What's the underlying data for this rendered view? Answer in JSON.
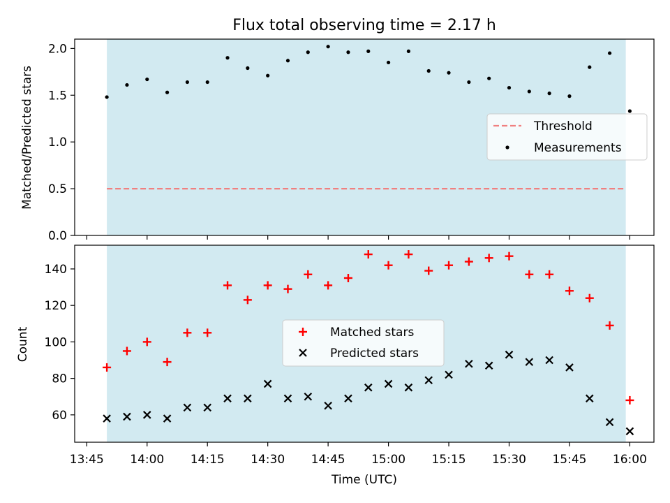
{
  "title": "Flux total observing time = 2.17 h",
  "colors": {
    "shade": "#add8e6",
    "threshold": "#f08080",
    "measurements": "#000000",
    "matched": "#ff0000",
    "predicted": "#000000"
  },
  "chart_data": [
    {
      "type": "scatter",
      "ylabel": "Matched/Predicted stars",
      "ylim": [
        0,
        2.1
      ],
      "y_ticks": [
        "0.0",
        "0.5",
        "1.0",
        "1.5",
        "2.0"
      ],
      "x_axis": "time",
      "xlim": [
        "13:42",
        "16:06"
      ],
      "shaded_span": [
        "13:50",
        "15:59"
      ],
      "legend": {
        "placement": "center-right",
        "entries": [
          "Threshold",
          "Measurements"
        ]
      },
      "series": [
        {
          "name": "Threshold",
          "style": "dashed-line",
          "x": [
            "13:50",
            "15:59"
          ],
          "values": [
            0.5,
            0.5
          ]
        },
        {
          "name": "Measurements",
          "style": "dot",
          "x": [
            "13:50",
            "13:55",
            "14:00",
            "14:05",
            "14:10",
            "14:15",
            "14:20",
            "14:25",
            "14:30",
            "14:35",
            "14:40",
            "14:45",
            "14:50",
            "14:55",
            "15:00",
            "15:05",
            "15:10",
            "15:15",
            "15:20",
            "15:25",
            "15:30",
            "15:35",
            "15:40",
            "15:45",
            "15:50",
            "15:55",
            "16:00"
          ],
          "values": [
            1.48,
            1.61,
            1.67,
            1.53,
            1.64,
            1.64,
            1.9,
            1.79,
            1.71,
            1.87,
            1.96,
            2.02,
            1.96,
            1.97,
            1.85,
            1.97,
            1.76,
            1.74,
            1.64,
            1.68,
            1.58,
            1.54,
            1.52,
            1.49,
            1.8,
            1.95,
            1.33
          ]
        }
      ]
    },
    {
      "type": "scatter",
      "ylabel": "Count",
      "xlabel": "Time (UTC)",
      "ylim": [
        45,
        153
      ],
      "y_ticks": [
        "60",
        "80",
        "100",
        "120",
        "140"
      ],
      "x_axis": "time",
      "xlim": [
        "13:42",
        "16:06"
      ],
      "x_ticks": [
        "13:45",
        "14:00",
        "14:15",
        "14:30",
        "14:45",
        "15:00",
        "15:15",
        "15:30",
        "15:45",
        "16:00"
      ],
      "shaded_span": [
        "13:50",
        "15:59"
      ],
      "legend": {
        "placement": "center",
        "entries": [
          "Matched stars",
          "Predicted stars"
        ]
      },
      "series": [
        {
          "name": "Matched stars",
          "style": "plus",
          "x": [
            "13:50",
            "13:55",
            "14:00",
            "14:05",
            "14:10",
            "14:15",
            "14:20",
            "14:25",
            "14:30",
            "14:35",
            "14:40",
            "14:45",
            "14:50",
            "14:55",
            "15:00",
            "15:05",
            "15:10",
            "15:15",
            "15:20",
            "15:25",
            "15:30",
            "15:35",
            "15:40",
            "15:45",
            "15:50",
            "15:55",
            "16:00"
          ],
          "values": [
            86,
            95,
            100,
            89,
            105,
            105,
            131,
            123,
            131,
            129,
            137,
            131,
            135,
            148,
            142,
            148,
            139,
            142,
            144,
            146,
            147,
            137,
            137,
            128,
            124,
            109,
            68
          ]
        },
        {
          "name": "Predicted stars",
          "style": "x",
          "x": [
            "13:50",
            "13:55",
            "14:00",
            "14:05",
            "14:10",
            "14:15",
            "14:20",
            "14:25",
            "14:30",
            "14:35",
            "14:40",
            "14:45",
            "14:50",
            "14:55",
            "15:00",
            "15:05",
            "15:10",
            "15:15",
            "15:20",
            "15:25",
            "15:30",
            "15:35",
            "15:40",
            "15:45",
            "15:50",
            "15:55",
            "16:00"
          ],
          "values": [
            58,
            59,
            60,
            58,
            64,
            64,
            69,
            69,
            77,
            69,
            70,
            65,
            69,
            75,
            77,
            75,
            79,
            82,
            88,
            87,
            93,
            89,
            90,
            86,
            69,
            56,
            51
          ]
        }
      ]
    }
  ]
}
